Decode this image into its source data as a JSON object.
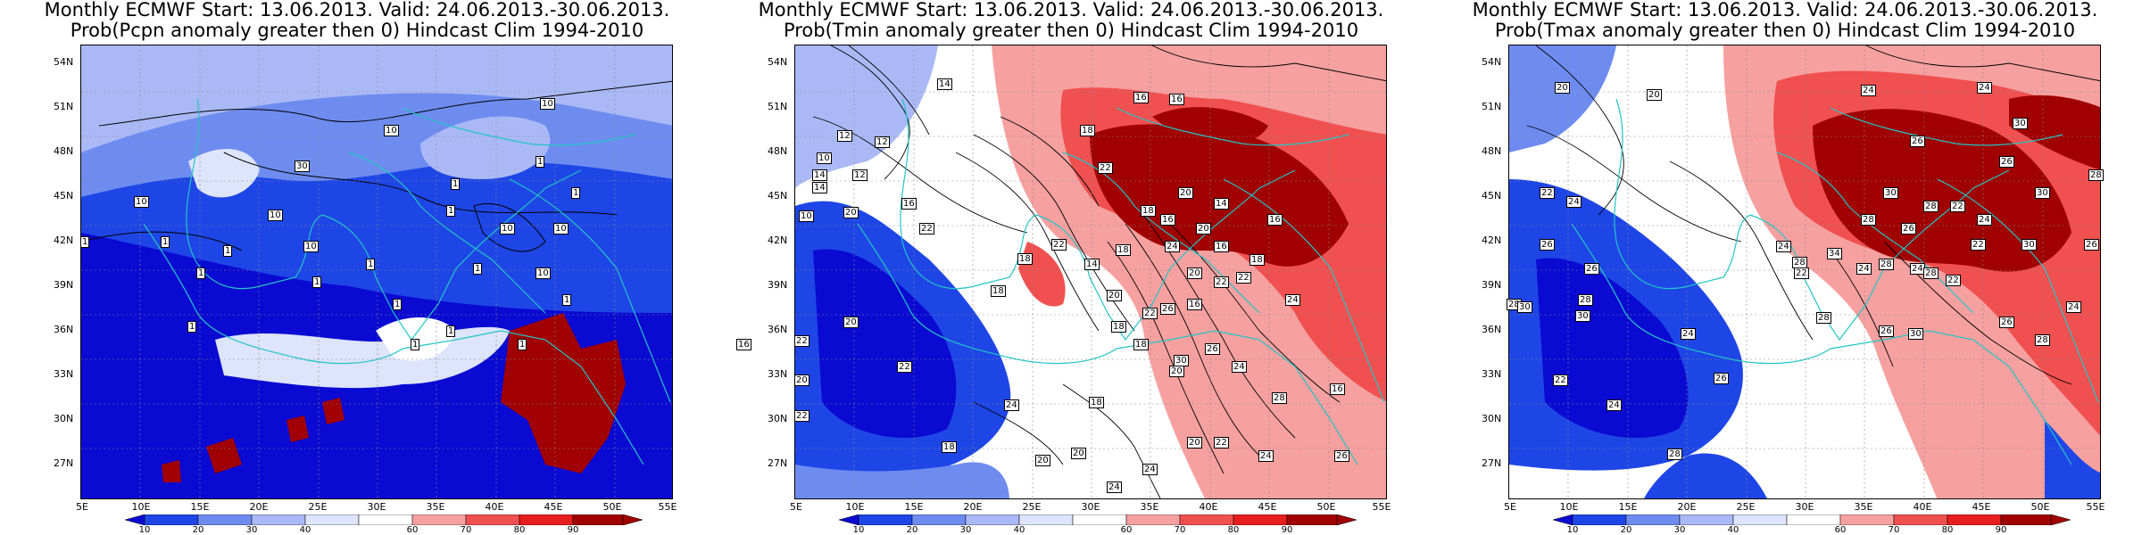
{
  "colors": {
    "land_lines": "#22c5c5",
    "contour": "#000000",
    "bins": [
      "#0a0ad2",
      "#1e46e6",
      "#6e8cf0",
      "#aab9f6",
      "#dde4fb",
      "#ffffff",
      "#fbd4d4",
      "#f7a0a0",
      "#f05050",
      "#e61e1e",
      "#a00000"
    ]
  },
  "lat_labels": [
    "54N",
    "51N",
    "48N",
    "45N",
    "42N",
    "39N",
    "36N",
    "33N",
    "30N",
    "27N"
  ],
  "lon_labels": [
    "5E",
    "10E",
    "15E",
    "20E",
    "25E",
    "30E",
    "35E",
    "40E",
    "45E",
    "50E",
    "55E"
  ],
  "colorbar": {
    "ticks": [
      "10",
      "20",
      "30",
      "40",
      "60",
      "70",
      "80",
      "90"
    ]
  },
  "panels": [
    {
      "title1": "Monthly ECMWF Start: 13.06.2013. Valid: 24.06.2013.-30.06.2013.",
      "title2": "Prob(Pcpn anomaly greater then 0) Hindcast Clim 1994-2010",
      "labels": [
        "10",
        "10",
        "30",
        "10",
        "10",
        "1",
        "1",
        "10",
        "1",
        "1",
        "1",
        "10",
        "1",
        "1",
        "1",
        "1",
        "1",
        "1",
        "10",
        "10",
        "1",
        "1",
        "1",
        "1",
        "1",
        "1"
      ]
    },
    {
      "title1": "Monthly ECMWF Start: 13.06.2013. Valid: 24.06.2013.-30.06.2013.",
      "title2": "Prob(Tmin anomaly greater then 0) Hindcast Clim 1994-2010",
      "labels": [
        "14",
        "16",
        "12",
        "10",
        "12",
        "16",
        "18",
        "14",
        "16",
        "14",
        "12",
        "22",
        "20",
        "14",
        "18",
        "16",
        "10",
        "20",
        "22",
        "20",
        "18",
        "16",
        "22",
        "14",
        "18",
        "24",
        "18",
        "16",
        "20",
        "22",
        "18",
        "20",
        "26",
        "22",
        "24",
        "16",
        "16",
        "22",
        "18",
        "18",
        "20",
        "22",
        "24",
        "26",
        "20",
        "20",
        "24",
        "28",
        "16",
        "22",
        "18",
        "18",
        "20",
        "20",
        "24",
        "20",
        "22",
        "24",
        "30",
        "22",
        "26",
        "24"
      ]
    },
    {
      "title1": "Monthly ECMWF Start: 13.06.2013. Valid: 24.06.2013.-30.06.2013.",
      "title2": "Prob(Tmax anomaly greater then 0) Hindcast Clim 1994-2010",
      "labels": [
        "20",
        "24",
        "26",
        "20",
        "24",
        "30",
        "28",
        "26",
        "30",
        "22",
        "24",
        "28",
        "26",
        "28",
        "22",
        "24",
        "30",
        "34",
        "26",
        "22",
        "24",
        "28",
        "26",
        "22",
        "24",
        "28",
        "30",
        "26",
        "28",
        "24",
        "22",
        "24",
        "28",
        "30",
        "28",
        "30",
        "26",
        "28",
        "24",
        "26",
        "30",
        "28",
        "22",
        "24",
        "26",
        "28"
      ]
    }
  ]
}
